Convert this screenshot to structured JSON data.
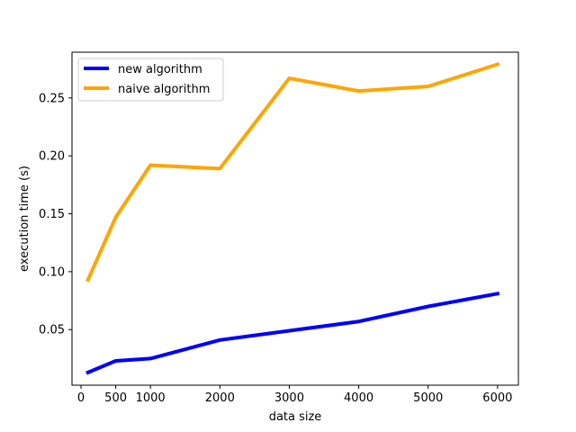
{
  "chart_data": {
    "type": "line",
    "xlabel": "data size",
    "ylabel": "execution time (s)",
    "xlim": [
      -130,
      6300
    ],
    "ylim": [
      0.002,
      0.2895
    ],
    "xticks": [
      0,
      500,
      1000,
      2000,
      3000,
      4000,
      5000,
      6000
    ],
    "xtick_labels": [
      "0",
      "500",
      "1000",
      "2000",
      "3000",
      "4000",
      "5000",
      "6000"
    ],
    "yticks": [
      0.05,
      0.1,
      0.15,
      0.2,
      0.25
    ],
    "ytick_labels": [
      "0.05",
      "0.10",
      "0.15",
      "0.20",
      "0.25"
    ],
    "grid": false,
    "legend_position": "top-left",
    "series": [
      {
        "name": "new algorithm",
        "color": "#0000ff",
        "x": [
          100,
          500,
          1000,
          2000,
          3000,
          4000,
          5000,
          6000
        ],
        "y": [
          0.013,
          0.023,
          0.025,
          0.041,
          0.049,
          0.057,
          0.07,
          0.081
        ]
      },
      {
        "name": "naive algorithm",
        "color": "#ffa500",
        "x": [
          100,
          500,
          1000,
          2000,
          3000,
          4000,
          5000,
          6000
        ],
        "y": [
          0.093,
          0.147,
          0.192,
          0.189,
          0.267,
          0.256,
          0.26,
          0.279
        ]
      }
    ]
  }
}
